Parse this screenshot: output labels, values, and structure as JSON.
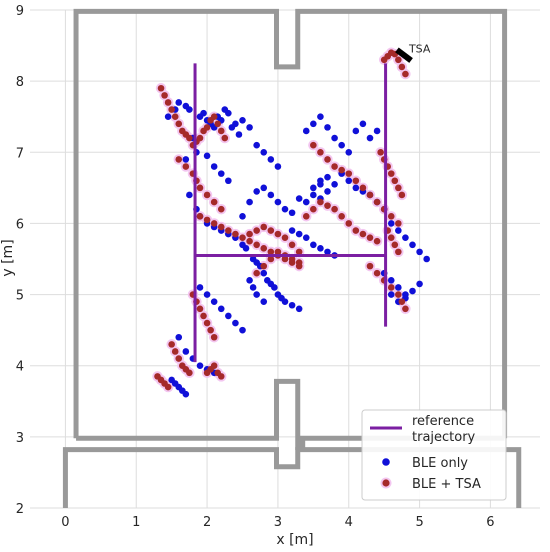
{
  "chart_data": {
    "type": "scatter",
    "title": "",
    "xlabel": "x [m]",
    "ylabel": "y [m]",
    "xlim": [
      -0.5,
      6.7
    ],
    "ylim": [
      2,
      9
    ],
    "xticks": [
      "0",
      "1",
      "2",
      "3",
      "4",
      "5",
      "6"
    ],
    "yticks": [
      "2",
      "3",
      "4",
      "5",
      "6",
      "7",
      "8",
      "9"
    ],
    "grid": true,
    "legend": {
      "position": "bottom-right",
      "entries": [
        "reference trajectory",
        "BLE only",
        "BLE + TSA"
      ]
    },
    "colors": {
      "walls": "#999999",
      "reference": "#7b1fa2",
      "ble_only": "#1010d8",
      "ble_tsa": "#a52a2a",
      "halo": "#f3c6f0",
      "grid": "#dddddd"
    },
    "annotation": {
      "text": "TSA",
      "x": 4.85,
      "y": 8.4
    },
    "tsa_marker": {
      "x": [
        4.68,
        4.88
      ],
      "y": [
        8.44,
        8.29
      ]
    },
    "walls": [
      {
        "x": [
          0.15,
          0.15,
          2.98,
          2.98,
          3.28,
          3.28,
          6.2,
          6.2
        ],
        "y": [
          2.98,
          8.98,
          8.98,
          8.2,
          8.2,
          8.98,
          8.98,
          2.98
        ]
      },
      {
        "x": [
          0.15,
          2.98,
          2.98,
          3.28,
          3.28,
          3.35,
          3.35,
          3.28,
          3.28,
          6.2
        ],
        "y": [
          2.98,
          2.98,
          3.78,
          3.78,
          2.98,
          2.98,
          2.85,
          2.85,
          2.98,
          2.98
        ]
      },
      {
        "x": [
          0.0,
          0.0,
          2.98,
          2.98,
          3.28,
          3.28,
          6.4,
          6.4
        ],
        "y": [
          2.0,
          2.82,
          2.82,
          2.58,
          2.58,
          2.82,
          2.82,
          2.0
        ]
      }
    ],
    "reference_trajectory": [
      {
        "x": [
          1.83,
          1.83
        ],
        "y": [
          8.25,
          4.05
        ]
      },
      {
        "x": [
          1.83,
          4.52
        ],
        "y": [
          5.55,
          5.55
        ]
      },
      {
        "x": [
          4.52,
          4.52
        ],
        "y": [
          8.25,
          4.55
        ]
      }
    ],
    "series": [
      {
        "name": "BLE only",
        "x": [
          1.45,
          1.55,
          1.6,
          1.7,
          1.75,
          1.9,
          1.95,
          2.0,
          2.05,
          2.1,
          2.15,
          2.2,
          2.25,
          2.3,
          2.35,
          2.4,
          2.45,
          2.5,
          2.6,
          2.7,
          2.8,
          2.9,
          3.0,
          1.8,
          1.85,
          2.0,
          2.1,
          2.2,
          2.3,
          1.7,
          1.75,
          1.85,
          1.9,
          2.0,
          2.1,
          2.2,
          2.3,
          2.4,
          2.5,
          2.55,
          2.65,
          2.7,
          2.75,
          2.8,
          2.85,
          2.9,
          2.95,
          3.0,
          3.05,
          3.1,
          3.2,
          3.3,
          2.5,
          2.6,
          2.7,
          2.8,
          2.9,
          3.0,
          3.1,
          3.2,
          3.3,
          3.4,
          3.5,
          3.6,
          3.2,
          3.3,
          3.4,
          3.5,
          3.6,
          3.7,
          3.8,
          3.4,
          3.5,
          3.6,
          3.7,
          3.8,
          3.9,
          4.0,
          4.1,
          4.2,
          4.3,
          4.4,
          3.6,
          3.7,
          3.8,
          3.9,
          4.0,
          4.1,
          4.2,
          4.3,
          4.4,
          4.5,
          4.6,
          4.7,
          4.8,
          4.9,
          5.0,
          5.1,
          4.5,
          4.6,
          4.7,
          4.8,
          4.9,
          5.0,
          4.6,
          4.7,
          4.8,
          1.9,
          2.0,
          2.1,
          2.2,
          2.3,
          2.4,
          2.5,
          1.6,
          1.7,
          1.8,
          1.9,
          2.0,
          2.1,
          1.5,
          1.55,
          1.6,
          1.65,
          1.7,
          2.6,
          2.65,
          2.7,
          2.8,
          3.5,
          3.6,
          3.7
        ],
        "y": [
          7.5,
          7.6,
          7.7,
          7.65,
          7.6,
          7.5,
          7.55,
          7.45,
          7.4,
          7.35,
          7.5,
          7.45,
          7.6,
          7.55,
          7.35,
          7.4,
          7.25,
          7.45,
          7.35,
          7.1,
          7.0,
          6.9,
          6.8,
          7.2,
          7.0,
          6.95,
          6.8,
          6.7,
          6.6,
          6.9,
          6.4,
          6.2,
          6.1,
          6.0,
          5.95,
          5.9,
          5.85,
          5.8,
          5.7,
          5.65,
          5.5,
          5.45,
          5.4,
          5.3,
          5.2,
          5.15,
          5.1,
          5.0,
          4.95,
          4.9,
          4.85,
          4.8,
          6.1,
          6.3,
          6.45,
          6.5,
          6.4,
          6.3,
          6.2,
          6.15,
          6.35,
          6.3,
          6.4,
          6.35,
          5.9,
          5.85,
          5.8,
          5.7,
          5.65,
          5.6,
          5.55,
          7.3,
          7.4,
          7.5,
          7.35,
          7.2,
          7.1,
          7.0,
          7.3,
          7.4,
          7.2,
          7.3,
          6.6,
          6.65,
          6.55,
          6.7,
          6.6,
          6.5,
          6.45,
          6.4,
          6.3,
          6.2,
          6.0,
          5.9,
          5.8,
          5.7,
          5.6,
          5.5,
          5.3,
          5.2,
          5.1,
          5.0,
          5.05,
          5.15,
          5.0,
          4.9,
          4.95,
          5.1,
          5.0,
          4.9,
          4.8,
          4.7,
          4.6,
          4.5,
          4.4,
          4.2,
          4.1,
          4.0,
          3.95,
          3.9,
          3.8,
          3.75,
          3.7,
          3.65,
          3.6,
          5.2,
          5.1,
          5.0,
          4.9,
          6.5,
          6.55,
          6.45
        ]
      },
      {
        "name": "BLE + TSA",
        "x": [
          1.35,
          1.4,
          1.45,
          1.5,
          1.55,
          1.6,
          1.65,
          1.7,
          1.75,
          1.8,
          1.85,
          1.9,
          1.95,
          2.0,
          2.05,
          2.1,
          2.15,
          2.2,
          2.25,
          1.6,
          1.7,
          1.8,
          1.85,
          1.9,
          2.0,
          2.1,
          2.2,
          1.9,
          2.0,
          2.1,
          2.2,
          2.3,
          2.4,
          2.5,
          2.6,
          2.7,
          2.8,
          2.9,
          3.0,
          3.1,
          3.2,
          3.3,
          2.6,
          2.7,
          2.8,
          2.9,
          3.0,
          3.1,
          3.2,
          3.3,
          3.4,
          3.5,
          3.6,
          3.7,
          3.8,
          3.9,
          4.0,
          4.1,
          4.2,
          4.3,
          4.4,
          3.5,
          3.6,
          3.7,
          3.8,
          3.9,
          4.0,
          4.1,
          4.2,
          4.3,
          4.4,
          4.5,
          4.6,
          4.7,
          4.5,
          4.55,
          4.6,
          4.65,
          4.7,
          4.75,
          4.8,
          4.45,
          4.5,
          4.55,
          4.6,
          4.65,
          4.7,
          4.75,
          4.55,
          4.6,
          4.65,
          4.7,
          4.3,
          4.4,
          4.5,
          4.6,
          4.7,
          4.75,
          4.8,
          1.8,
          1.85,
          1.9,
          1.95,
          2.0,
          2.05,
          2.1,
          1.5,
          1.55,
          1.6,
          1.65,
          1.7,
          1.75,
          1.3,
          1.35,
          1.4,
          1.45,
          2.0,
          2.05,
          2.1,
          2.15,
          2.2,
          2.7,
          2.8,
          2.9,
          3.0,
          3.1,
          3.2,
          3.3
        ],
        "y": [
          7.9,
          7.8,
          7.7,
          7.6,
          7.5,
          7.4,
          7.3,
          7.25,
          7.2,
          7.1,
          7.15,
          7.2,
          7.3,
          7.35,
          7.45,
          7.5,
          7.4,
          7.3,
          7.2,
          6.9,
          6.8,
          6.7,
          6.6,
          6.5,
          6.4,
          6.3,
          6.2,
          6.1,
          6.05,
          6.0,
          5.95,
          5.9,
          5.85,
          5.8,
          5.85,
          5.9,
          5.95,
          5.9,
          5.85,
          5.8,
          5.7,
          5.6,
          5.75,
          5.7,
          5.65,
          5.6,
          5.55,
          5.5,
          5.45,
          5.4,
          6.1,
          6.2,
          6.3,
          6.25,
          6.2,
          6.1,
          6.0,
          5.9,
          5.85,
          5.8,
          5.75,
          7.1,
          7.0,
          6.9,
          6.8,
          6.75,
          6.7,
          6.6,
          6.5,
          6.4,
          6.3,
          6.2,
          6.1,
          6.0,
          8.3,
          8.35,
          8.4,
          8.38,
          8.3,
          8.2,
          8.1,
          7.0,
          6.9,
          6.8,
          6.7,
          6.6,
          6.5,
          6.4,
          5.9,
          5.8,
          5.7,
          5.6,
          5.4,
          5.3,
          5.2,
          5.1,
          5.0,
          4.9,
          4.8,
          5.0,
          4.9,
          4.8,
          4.7,
          4.6,
          4.5,
          4.4,
          4.3,
          4.2,
          4.1,
          4.0,
          3.95,
          3.9,
          3.85,
          3.8,
          3.75,
          3.7,
          3.9,
          3.95,
          4.0,
          3.9,
          3.85,
          5.3,
          5.4,
          5.5,
          5.6,
          5.55,
          5.5,
          5.45
        ]
      }
    ]
  }
}
